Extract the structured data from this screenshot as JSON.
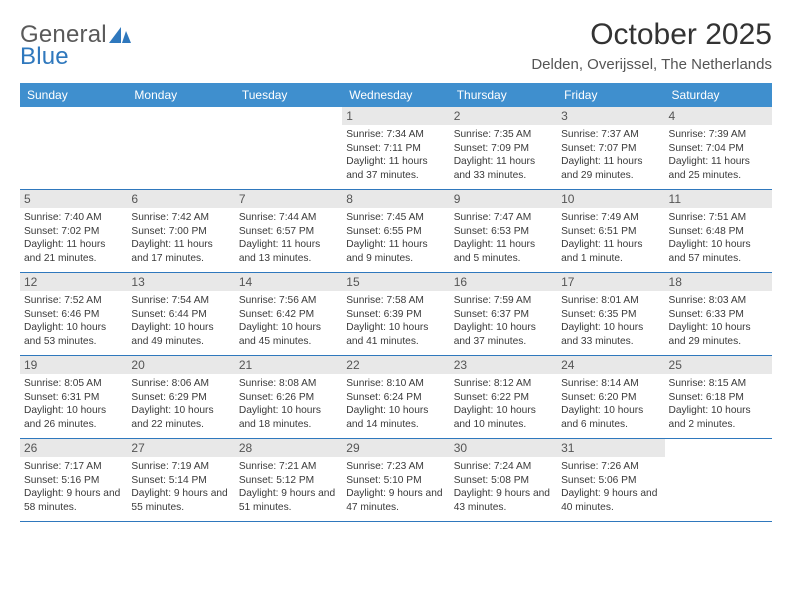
{
  "logo": {
    "word1": "General",
    "word2": "Blue",
    "sail_color": "#2f78bd",
    "text_color": "#5a5a5a"
  },
  "title": "October 2025",
  "location": "Delden, Overijssel, The Netherlands",
  "colors": {
    "header_bg": "#3f8fce",
    "header_fg": "#ffffff",
    "rule": "#2f78bd",
    "daynum_bg": "#e8e8e8",
    "body_text": "#3a3a3a",
    "page_bg": "#ffffff"
  },
  "typography": {
    "title_fontsize_pt": 22,
    "location_fontsize_pt": 11,
    "dow_fontsize_pt": 9,
    "daynum_fontsize_pt": 9,
    "body_fontsize_pt": 7.6
  },
  "days_of_week": [
    "Sunday",
    "Monday",
    "Tuesday",
    "Wednesday",
    "Thursday",
    "Friday",
    "Saturday"
  ],
  "weeks": [
    [
      {
        "n": "",
        "sr": "",
        "ss": "",
        "dl": ""
      },
      {
        "n": "",
        "sr": "",
        "ss": "",
        "dl": ""
      },
      {
        "n": "",
        "sr": "",
        "ss": "",
        "dl": ""
      },
      {
        "n": "1",
        "sr": "Sunrise: 7:34 AM",
        "ss": "Sunset: 7:11 PM",
        "dl": "Daylight: 11 hours and 37 minutes."
      },
      {
        "n": "2",
        "sr": "Sunrise: 7:35 AM",
        "ss": "Sunset: 7:09 PM",
        "dl": "Daylight: 11 hours and 33 minutes."
      },
      {
        "n": "3",
        "sr": "Sunrise: 7:37 AM",
        "ss": "Sunset: 7:07 PM",
        "dl": "Daylight: 11 hours and 29 minutes."
      },
      {
        "n": "4",
        "sr": "Sunrise: 7:39 AM",
        "ss": "Sunset: 7:04 PM",
        "dl": "Daylight: 11 hours and 25 minutes."
      }
    ],
    [
      {
        "n": "5",
        "sr": "Sunrise: 7:40 AM",
        "ss": "Sunset: 7:02 PM",
        "dl": "Daylight: 11 hours and 21 minutes."
      },
      {
        "n": "6",
        "sr": "Sunrise: 7:42 AM",
        "ss": "Sunset: 7:00 PM",
        "dl": "Daylight: 11 hours and 17 minutes."
      },
      {
        "n": "7",
        "sr": "Sunrise: 7:44 AM",
        "ss": "Sunset: 6:57 PM",
        "dl": "Daylight: 11 hours and 13 minutes."
      },
      {
        "n": "8",
        "sr": "Sunrise: 7:45 AM",
        "ss": "Sunset: 6:55 PM",
        "dl": "Daylight: 11 hours and 9 minutes."
      },
      {
        "n": "9",
        "sr": "Sunrise: 7:47 AM",
        "ss": "Sunset: 6:53 PM",
        "dl": "Daylight: 11 hours and 5 minutes."
      },
      {
        "n": "10",
        "sr": "Sunrise: 7:49 AM",
        "ss": "Sunset: 6:51 PM",
        "dl": "Daylight: 11 hours and 1 minute."
      },
      {
        "n": "11",
        "sr": "Sunrise: 7:51 AM",
        "ss": "Sunset: 6:48 PM",
        "dl": "Daylight: 10 hours and 57 minutes."
      }
    ],
    [
      {
        "n": "12",
        "sr": "Sunrise: 7:52 AM",
        "ss": "Sunset: 6:46 PM",
        "dl": "Daylight: 10 hours and 53 minutes."
      },
      {
        "n": "13",
        "sr": "Sunrise: 7:54 AM",
        "ss": "Sunset: 6:44 PM",
        "dl": "Daylight: 10 hours and 49 minutes."
      },
      {
        "n": "14",
        "sr": "Sunrise: 7:56 AM",
        "ss": "Sunset: 6:42 PM",
        "dl": "Daylight: 10 hours and 45 minutes."
      },
      {
        "n": "15",
        "sr": "Sunrise: 7:58 AM",
        "ss": "Sunset: 6:39 PM",
        "dl": "Daylight: 10 hours and 41 minutes."
      },
      {
        "n": "16",
        "sr": "Sunrise: 7:59 AM",
        "ss": "Sunset: 6:37 PM",
        "dl": "Daylight: 10 hours and 37 minutes."
      },
      {
        "n": "17",
        "sr": "Sunrise: 8:01 AM",
        "ss": "Sunset: 6:35 PM",
        "dl": "Daylight: 10 hours and 33 minutes."
      },
      {
        "n": "18",
        "sr": "Sunrise: 8:03 AM",
        "ss": "Sunset: 6:33 PM",
        "dl": "Daylight: 10 hours and 29 minutes."
      }
    ],
    [
      {
        "n": "19",
        "sr": "Sunrise: 8:05 AM",
        "ss": "Sunset: 6:31 PM",
        "dl": "Daylight: 10 hours and 26 minutes."
      },
      {
        "n": "20",
        "sr": "Sunrise: 8:06 AM",
        "ss": "Sunset: 6:29 PM",
        "dl": "Daylight: 10 hours and 22 minutes."
      },
      {
        "n": "21",
        "sr": "Sunrise: 8:08 AM",
        "ss": "Sunset: 6:26 PM",
        "dl": "Daylight: 10 hours and 18 minutes."
      },
      {
        "n": "22",
        "sr": "Sunrise: 8:10 AM",
        "ss": "Sunset: 6:24 PM",
        "dl": "Daylight: 10 hours and 14 minutes."
      },
      {
        "n": "23",
        "sr": "Sunrise: 8:12 AM",
        "ss": "Sunset: 6:22 PM",
        "dl": "Daylight: 10 hours and 10 minutes."
      },
      {
        "n": "24",
        "sr": "Sunrise: 8:14 AM",
        "ss": "Sunset: 6:20 PM",
        "dl": "Daylight: 10 hours and 6 minutes."
      },
      {
        "n": "25",
        "sr": "Sunrise: 8:15 AM",
        "ss": "Sunset: 6:18 PM",
        "dl": "Daylight: 10 hours and 2 minutes."
      }
    ],
    [
      {
        "n": "26",
        "sr": "Sunrise: 7:17 AM",
        "ss": "Sunset: 5:16 PM",
        "dl": "Daylight: 9 hours and 58 minutes."
      },
      {
        "n": "27",
        "sr": "Sunrise: 7:19 AM",
        "ss": "Sunset: 5:14 PM",
        "dl": "Daylight: 9 hours and 55 minutes."
      },
      {
        "n": "28",
        "sr": "Sunrise: 7:21 AM",
        "ss": "Sunset: 5:12 PM",
        "dl": "Daylight: 9 hours and 51 minutes."
      },
      {
        "n": "29",
        "sr": "Sunrise: 7:23 AM",
        "ss": "Sunset: 5:10 PM",
        "dl": "Daylight: 9 hours and 47 minutes."
      },
      {
        "n": "30",
        "sr": "Sunrise: 7:24 AM",
        "ss": "Sunset: 5:08 PM",
        "dl": "Daylight: 9 hours and 43 minutes."
      },
      {
        "n": "31",
        "sr": "Sunrise: 7:26 AM",
        "ss": "Sunset: 5:06 PM",
        "dl": "Daylight: 9 hours and 40 minutes."
      },
      {
        "n": "",
        "sr": "",
        "ss": "",
        "dl": ""
      }
    ]
  ]
}
